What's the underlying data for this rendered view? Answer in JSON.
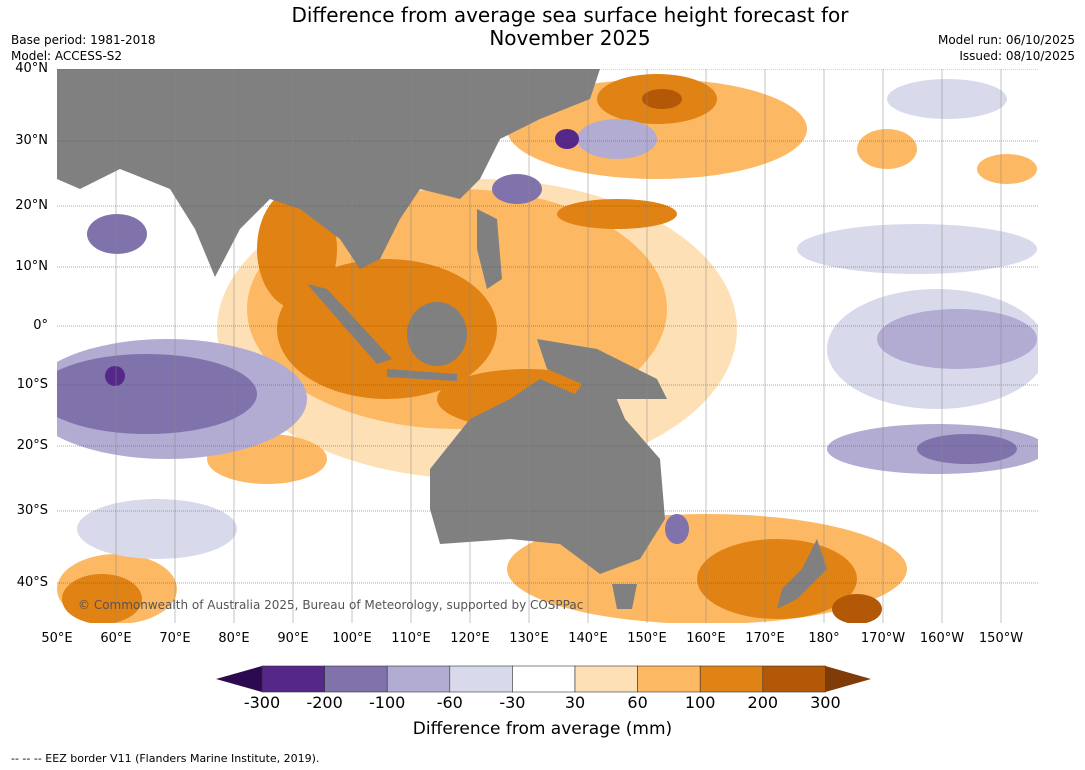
{
  "title": "Difference from average sea surface height forecast for November 2025",
  "title_line1": "Difference from average sea surface height forecast for",
  "title_line2": "November 2025",
  "base_period": "Base period: 1981-2018",
  "model": "Model: ACCESS-S2",
  "model_run": "Model run: 06/10/2025",
  "issued": "Issued: 08/10/2025",
  "lat_labels": [
    "40°N",
    "30°N",
    "20°N",
    "10°N",
    "0°",
    "10°S",
    "20°S",
    "30°S",
    "40°S"
  ],
  "lon_labels": [
    "50°E",
    "60°E",
    "70°E",
    "80°E",
    "90°E",
    "100°E",
    "110°E",
    "120°E",
    "130°E",
    "140°E",
    "150°E",
    "160°E",
    "170°E",
    "180°",
    "170°W",
    "160°W",
    "150°W"
  ],
  "copyright": "© Commonwealth of Australia 2025, Bureau of Meteorology, supported by COSPPac",
  "colorbar": {
    "title": "Difference from average (mm)",
    "ticks": [
      "-300",
      "-200",
      "-100",
      "-60",
      "-30",
      "30",
      "60",
      "100",
      "200",
      "300"
    ],
    "colors": [
      "#2d0a4f",
      "#542788",
      "#8073ac",
      "#b2abd2",
      "#d8daeb",
      "#ffffff",
      "#fee0b6",
      "#fdb863",
      "#e08214",
      "#b35806",
      "#7f3b08"
    ]
  },
  "footer": "--  --  -- EEZ border V11 (Flanders Marine Institute, 2019)."
}
